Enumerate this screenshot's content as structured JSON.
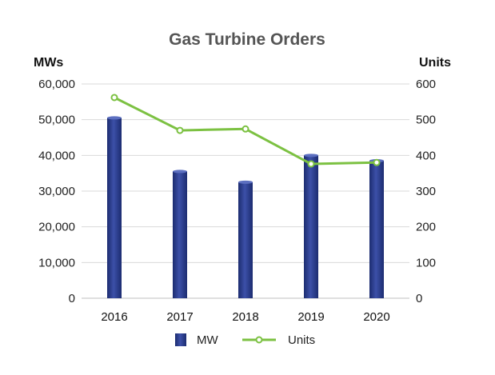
{
  "chart_data": {
    "type": "bar+line",
    "title": "Gas Turbine Orders",
    "categories": [
      "2016",
      "2017",
      "2018",
      "2019",
      "2020"
    ],
    "series": [
      {
        "name": "MW",
        "type": "bar",
        "axis": "left",
        "values": [
          50500,
          35500,
          32500,
          40000,
          38500
        ],
        "color": "#2a3c8c"
      },
      {
        "name": "Units",
        "type": "line",
        "axis": "right",
        "values": [
          562,
          470,
          474,
          376,
          380
        ],
        "color": "#7cc142"
      }
    ],
    "y_left": {
      "label": "MWs",
      "ylim": [
        0,
        60000
      ],
      "ticks": [
        0,
        10000,
        20000,
        30000,
        40000,
        50000,
        60000
      ],
      "tick_labels": [
        "0",
        "10,000",
        "20,000",
        "30,000",
        "40,000",
        "50,000",
        "60,000"
      ]
    },
    "y_right": {
      "label": "Units",
      "ylim": [
        0,
        600
      ],
      "ticks": [
        0,
        100,
        200,
        300,
        400,
        500,
        600
      ],
      "tick_labels": [
        "0",
        "100",
        "200",
        "300",
        "400",
        "500",
        "600"
      ]
    },
    "grid": true,
    "legend": {
      "position": "bottom",
      "entries": [
        "MW",
        "Units"
      ]
    }
  },
  "colors": {
    "bar": "#2a3c8c",
    "bar_highlight": "#5c6fc0",
    "line": "#7cc142",
    "grid": "#d9d9d9",
    "title": "#555555"
  }
}
